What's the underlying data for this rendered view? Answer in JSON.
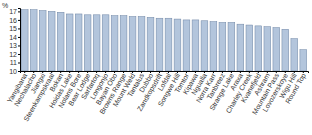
{
  "chart_data": {
    "type": "bar",
    "y_label": "%",
    "categories": [
      "Yangibana",
      "Nechalacho",
      "Jiangxi",
      "Steenkampskraal",
      "Bokan",
      "Hoidas Lake",
      "Nolans Bore",
      "Bear Lodge",
      "Sarfartoq",
      "Longonjo",
      "Bayan Obo",
      "Browns Range",
      "Mount Weld",
      "Tantalus",
      "Dubbo",
      "Zandkopsdrift",
      "Lofdal",
      "Songwe Hill",
      "Tomtor",
      "Kipawa",
      "Ngualla",
      "Norra Karr",
      "Tanbreez",
      "Strange Lake",
      "Araxa",
      "Charley Creek",
      "Kvanefjeld",
      "Ashram",
      "Mountain Pass",
      "Lovozerskoye",
      "Wigu Hill",
      "Round Top"
    ],
    "values": [
      17.2,
      17.2,
      17.1,
      17.0,
      16.9,
      16.7,
      16.7,
      16.6,
      16.6,
      16.6,
      16.5,
      16.5,
      16.4,
      16.4,
      16.3,
      16.2,
      16.2,
      16.1,
      16.0,
      16.0,
      15.9,
      15.8,
      15.7,
      15.7,
      15.5,
      15.4,
      15.3,
      15.2,
      15.1,
      14.9,
      13.8,
      12.5
    ],
    "color": "#b3c5dc",
    "ylim": [
      10,
      17.4
    ],
    "yticks": [
      10,
      11,
      12,
      13,
      14,
      15,
      16,
      17
    ],
    "grid": false
  }
}
